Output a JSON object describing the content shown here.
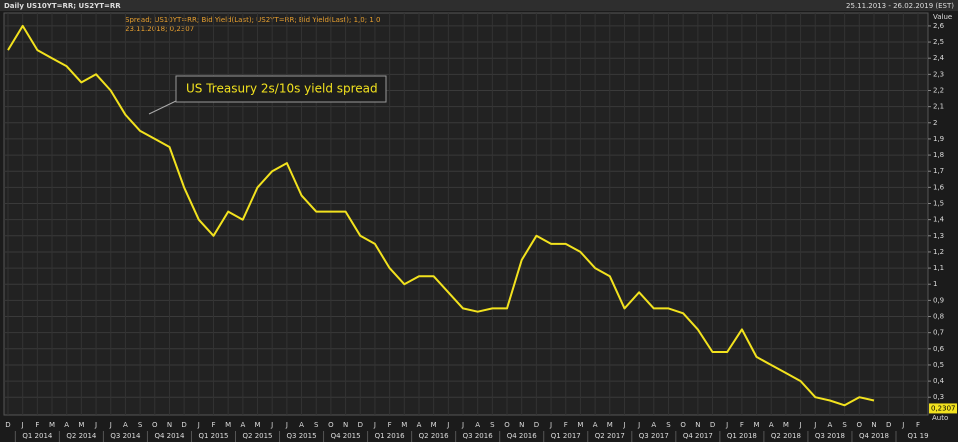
{
  "chart_data": {
    "type": "line",
    "title": "Daily US10YT=RR; US2YT=RR",
    "date_range": "25.11.2013 - 26.02.2019 (EST)",
    "legend_rest": "; US10YT=RR; Bid Yield(Last); US2YT=RR; Bid Yield(Last); 1,0; 1,0",
    "cursor_text": "23.11.2018; 0,2307",
    "annotation": "US Treasury 2s/10s yield spread",
    "y_axis_label": "Value",
    "scale_mode": "Auto",
    "last_value": {
      "value": 0.2307,
      "label": "0,2307"
    },
    "categories": [
      "D",
      "J",
      "F",
      "M",
      "A",
      "M",
      "J",
      "J",
      "A",
      "S",
      "O",
      "N",
      "D",
      "J",
      "F",
      "M",
      "A",
      "M",
      "J",
      "J",
      "A",
      "S",
      "O",
      "N",
      "D",
      "J",
      "F",
      "M",
      "A",
      "M",
      "J",
      "J",
      "A",
      "S",
      "O",
      "N",
      "D",
      "J",
      "F",
      "M",
      "A",
      "M",
      "J",
      "J",
      "A",
      "S",
      "O",
      "N",
      "D",
      "J",
      "F",
      "M",
      "A",
      "M",
      "J",
      "J",
      "A",
      "S",
      "O",
      "N",
      "D",
      "J",
      "F"
    ],
    "quarters": [
      "Q1 2014",
      "Q2 2014",
      "Q3 2014",
      "Q4 2014",
      "Q1 2015",
      "Q2 2015",
      "Q3 2015",
      "Q4 2015",
      "Q1 2016",
      "Q2 2016",
      "Q3 2016",
      "Q4 2016",
      "Q1 2017",
      "Q2 2017",
      "Q3 2017",
      "Q4 2017",
      "Q1 2018",
      "Q2 2018",
      "Q3 2018",
      "Q4 2018",
      "Q1 19"
    ],
    "series": [
      {
        "name": "Spread",
        "color": "#f2e21e",
        "values": [
          2.45,
          2.6,
          2.45,
          2.4,
          2.35,
          2.25,
          2.3,
          2.2,
          2.05,
          1.95,
          1.9,
          1.85,
          1.6,
          1.4,
          1.3,
          1.45,
          1.4,
          1.6,
          1.7,
          1.75,
          1.55,
          1.45,
          1.45,
          1.45,
          1.3,
          1.25,
          1.1,
          1.0,
          1.05,
          1.05,
          0.95,
          0.85,
          0.83,
          0.85,
          0.85,
          1.15,
          1.3,
          1.25,
          1.25,
          1.2,
          1.1,
          1.05,
          0.85,
          0.95,
          0.85,
          0.85,
          0.82,
          0.72,
          0.58,
          0.58,
          0.72,
          0.55,
          0.5,
          0.45,
          0.4,
          0.3,
          0.28,
          0.25,
          0.3,
          0.28,
          null,
          null,
          null
        ]
      }
    ],
    "ylim": [
      0.19,
      2.68
    ],
    "yticks": [
      {
        "value": 0.3,
        "label": "0,3"
      },
      {
        "value": 0.4,
        "label": "0,4"
      },
      {
        "value": 0.5,
        "label": "0,5"
      },
      {
        "value": 0.6,
        "label": "0,6"
      },
      {
        "value": 0.7,
        "label": "0,7"
      },
      {
        "value": 0.8,
        "label": "0,8"
      },
      {
        "value": 0.9,
        "label": "0,9"
      },
      1,
      {
        "value": 1.1,
        "label": "1,1"
      },
      {
        "value": 1.2,
        "label": "1,2"
      },
      {
        "value": 1.3,
        "label": "1,3"
      },
      {
        "value": 1.4,
        "label": "1,4"
      },
      {
        "value": 1.5,
        "label": "1,5"
      },
      {
        "value": 1.6,
        "label": "1,6"
      },
      {
        "value": 1.7,
        "label": "1,7"
      },
      {
        "value": 1.8,
        "label": "1,8"
      },
      {
        "value": 1.9,
        "label": "1,9"
      },
      2,
      {
        "value": 2.1,
        "label": "2,1"
      },
      {
        "value": 2.2,
        "label": "2,2"
      },
      {
        "value": 2.3,
        "label": "2,3"
      },
      {
        "value": 2.4,
        "label": "2,4"
      },
      {
        "value": 2.5,
        "label": "2,5"
      },
      {
        "value": 2.6,
        "label": "2,6"
      }
    ],
    "grid": true
  }
}
